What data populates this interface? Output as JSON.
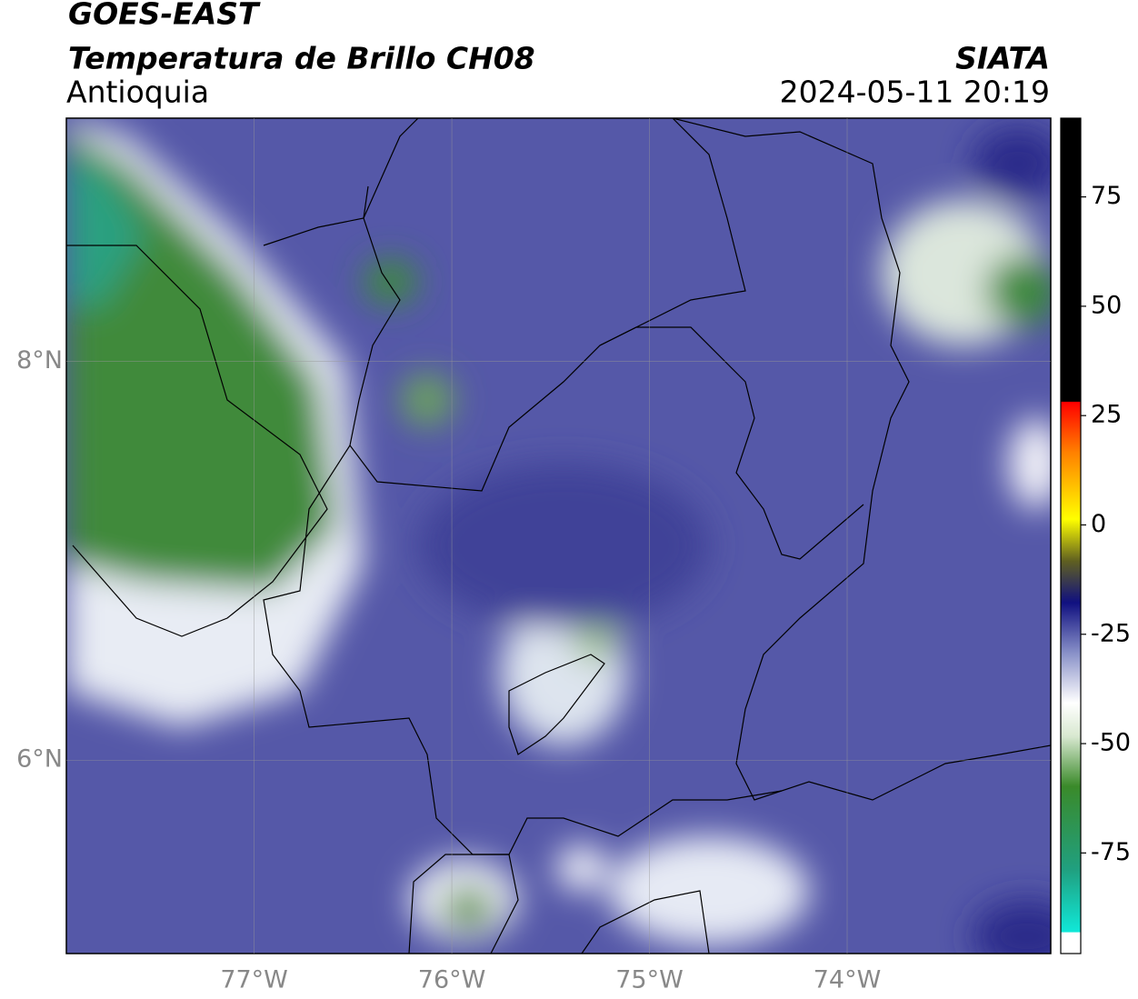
{
  "title": "GOES-EAST",
  "subtitle": "Temperatura de Brillo CH08",
  "region": "Antioquia",
  "source": "SIATA",
  "datetime": "2024-05-11 20:19",
  "map": {
    "xlim": [
      -77.95,
      -72.97
    ],
    "ylim": [
      5.03,
      9.22
    ],
    "xticks": [
      {
        "value": -77,
        "label": "77°W"
      },
      {
        "value": -76,
        "label": "76°W"
      },
      {
        "value": -75,
        "label": "75°W"
      },
      {
        "value": -74,
        "label": "74°W"
      }
    ],
    "yticks": [
      {
        "value": 8,
        "label": "8°N"
      },
      {
        "value": 6,
        "label": "6°N"
      }
    ],
    "grid": true
  },
  "colorbar": {
    "lim": [
      -98,
      93
    ],
    "ticks": [
      75,
      50,
      25,
      0,
      -25,
      -50,
      -75
    ]
  }
}
